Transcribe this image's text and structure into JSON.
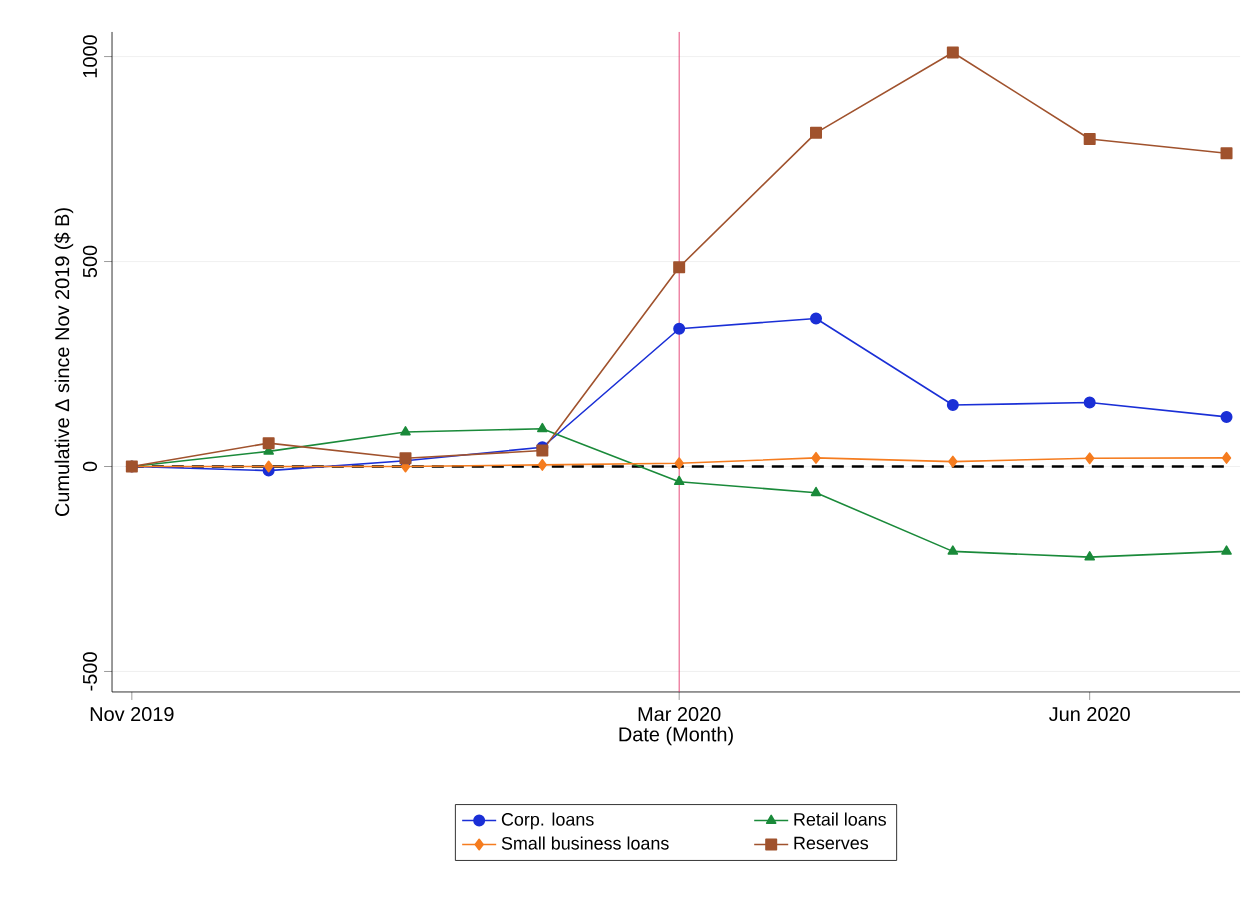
{
  "chart_data": {
    "type": "line",
    "xlabel": "Date (Month)",
    "ylabel": "Cumulative Δ since Nov 2019 ($ B)",
    "x": [
      "2019-11",
      "2019-12",
      "2020-01",
      "2020-02",
      "2020-03",
      "2020-04",
      "2020-05",
      "2020-06",
      "2020-07"
    ],
    "xlim": [
      "2019-10-27",
      "2020-07-04"
    ],
    "xticks": [
      {
        "value": "2019-11",
        "label": "Nov 2019"
      },
      {
        "value": "2020-03",
        "label": "Mar 2020"
      },
      {
        "value": "2020-06",
        "label": "Jun 2020"
      }
    ],
    "ylim": [
      -550,
      1060
    ],
    "yticks": [
      -500,
      0,
      500,
      1000
    ],
    "grid": "y",
    "legend": "bottom",
    "series": [
      {
        "name": "Corp. loans",
        "color": "#1a2fd6",
        "marker": "circle",
        "values": [
          0,
          -10,
          14,
          47,
          336,
          361,
          150,
          156,
          121
        ]
      },
      {
        "name": "Retail loans",
        "color": "#1a8a3a",
        "marker": "triangle",
        "values": [
          0,
          37,
          84,
          92,
          -37,
          -64,
          -207,
          -221,
          -207
        ]
      },
      {
        "name": "Small business loans",
        "color": "#f57c1f",
        "marker": "diamond",
        "values": [
          0,
          0,
          0,
          4,
          8,
          21,
          12,
          20,
          21
        ]
      },
      {
        "name": "Reserves",
        "color": "#a0522d",
        "marker": "square",
        "values": [
          0,
          57,
          20,
          39,
          486,
          814,
          1010,
          799,
          764
        ]
      }
    ],
    "ref_lines": [
      {
        "axis": "x",
        "value": "2020-03",
        "color": "#e0205a",
        "line_style": "solid"
      },
      {
        "axis": "y",
        "value": 0,
        "color": "#000000",
        "line_style": "dashed"
      }
    ]
  }
}
